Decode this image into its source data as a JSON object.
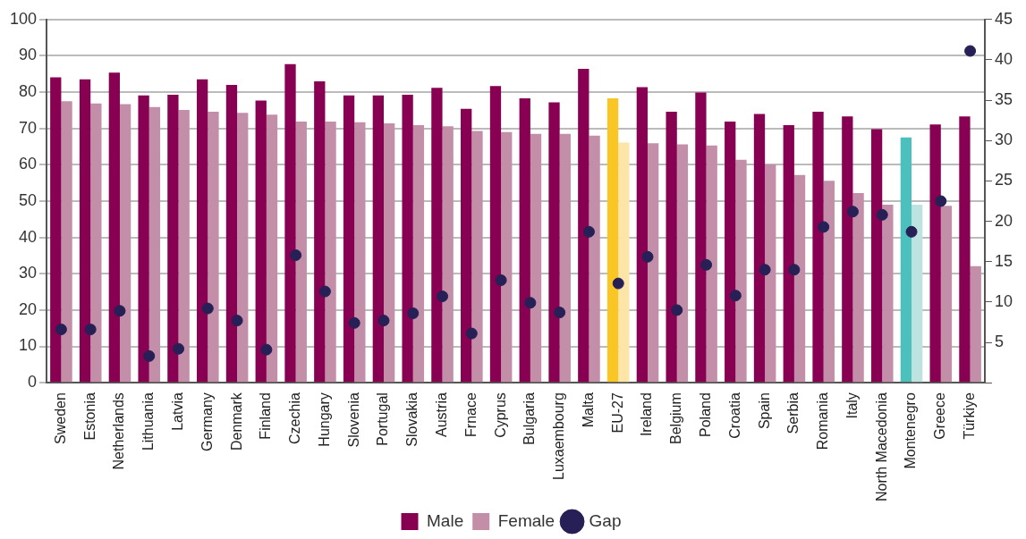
{
  "chart_data": {
    "type": "bar",
    "categories": [
      "Sweden",
      "Estonia",
      "Netherlands",
      "Lithuania",
      "Latvia",
      "Germany",
      "Denmark",
      "Finland",
      "Czechia",
      "Hungary",
      "Slovenia",
      "Portugal",
      "Slovakia",
      "Austria",
      "Frnace",
      "Cyprus",
      "Bulgaria",
      "Luxaembourg",
      "Malta",
      "EU-27",
      "Ireland",
      "Belgium",
      "Poland",
      "Croatia",
      "Spain",
      "Serbia",
      "Romania",
      "Italy",
      "North Macedonia",
      "Montenegro",
      "Greece",
      "Türkiye"
    ],
    "series": [
      {
        "name": "Male",
        "color": "#870051",
        "colors": [
          "#870051",
          "#870051",
          "#870051",
          "#870051",
          "#870051",
          "#870051",
          "#870051",
          "#870051",
          "#870051",
          "#870051",
          "#870051",
          "#870051",
          "#870051",
          "#870051",
          "#870051",
          "#870051",
          "#870051",
          "#870051",
          "#870051",
          "#f9c623",
          "#870051",
          "#870051",
          "#870051",
          "#870051",
          "#870051",
          "#870051",
          "#870051",
          "#870051",
          "#870051",
          "#4bc0bc",
          "#870051",
          "#870051"
        ],
        "values": [
          84.1,
          83.5,
          85.4,
          79.1,
          79.3,
          83.5,
          82.0,
          77.7,
          87.7,
          83.0,
          79.1,
          79.1,
          79.3,
          81.2,
          75.4,
          81.7,
          78.3,
          77.2,
          86.4,
          78.3,
          81.4,
          74.6,
          79.9,
          71.9,
          74.0,
          70.9,
          74.6,
          73.3,
          69.8,
          67.5,
          71.1,
          73.3
        ]
      },
      {
        "name": "Female",
        "color": "#c38fa8",
        "colors": [
          "#c38fa8",
          "#c38fa8",
          "#c38fa8",
          "#c38fa8",
          "#c38fa8",
          "#c38fa8",
          "#c38fa8",
          "#c38fa8",
          "#c38fa8",
          "#c38fa8",
          "#c38fa8",
          "#c38fa8",
          "#c38fa8",
          "#c38fa8",
          "#c38fa8",
          "#c38fa8",
          "#c38fa8",
          "#c38fa8",
          "#c38fa8",
          "#fde5a8",
          "#c38fa8",
          "#c38fa8",
          "#c38fa8",
          "#c38fa8",
          "#c38fa8",
          "#c38fa8",
          "#c38fa8",
          "#c38fa8",
          "#c38fa8",
          "#bde3e1",
          "#c38fa8",
          "#c38fa8"
        ],
        "values": [
          77.5,
          76.9,
          76.7,
          75.9,
          75.1,
          74.6,
          74.3,
          73.8,
          71.9,
          71.9,
          71.7,
          71.4,
          70.9,
          70.6,
          69.3,
          69.0,
          68.5,
          68.5,
          68.0,
          66.1,
          65.9,
          65.6,
          65.3,
          61.4,
          60.1,
          57.2,
          55.6,
          52.2,
          49.0,
          49.0,
          48.7,
          32.1
        ]
      },
      {
        "name": "Gap",
        "type": "scatter",
        "axis": "y2",
        "color": "#262056",
        "marker": "circle",
        "values": [
          6.6,
          6.6,
          8.9,
          3.3,
          4.2,
          9.2,
          7.7,
          4.1,
          15.8,
          11.3,
          7.4,
          7.7,
          8.6,
          10.7,
          6.1,
          12.7,
          9.9,
          8.7,
          18.7,
          12.3,
          15.6,
          9.0,
          14.6,
          10.8,
          14.0,
          14.0,
          19.3,
          21.2,
          20.8,
          18.7,
          22.5,
          41.1
        ]
      }
    ],
    "ylim": [
      0,
      100
    ],
    "yticks": [
      0,
      10,
      20,
      30,
      40,
      50,
      60,
      70,
      80,
      90,
      100
    ],
    "y2lim": [
      0,
      45
    ],
    "y2ticks": [
      {
        "value": 0,
        "label": null
      },
      5,
      10,
      15,
      20,
      25,
      30,
      35,
      40,
      45
    ],
    "grid": "y",
    "legend": "bottom"
  }
}
